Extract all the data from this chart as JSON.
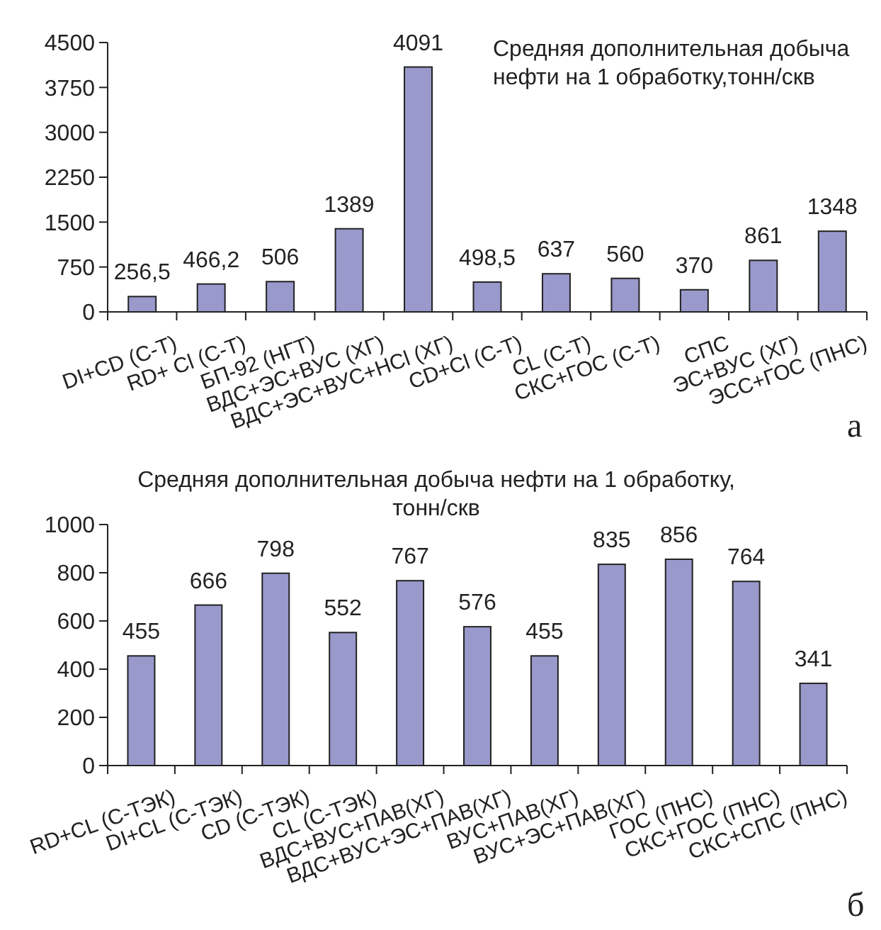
{
  "chart_data": [
    {
      "type": "bar",
      "title": "Средняя дополнительная добыча нефти на 1 обработку,тонн/скв",
      "categories": [
        "DI+CD (C-T)",
        "RD+ Cl (C-T)",
        "БП-92 (НГТ)",
        "ВДС+ЭС+ВУС (ХГ)",
        "ВДС+ЭС+ВУС+HCl (ХГ)",
        "CD+Cl (C-T)",
        "CL (C-T)",
        "СКС+ГОС (С-Т)",
        "СПС",
        "ЭС+ВУС (ХГ)",
        "ЭСС+ГОС (ПНС)"
      ],
      "values": [
        256.5,
        466.2,
        506,
        1389,
        4091,
        498.5,
        637,
        560,
        370,
        861,
        1348
      ],
      "value_labels": [
        "256,5",
        "466,2",
        "506",
        "1389",
        "4091",
        "498,5",
        "637",
        "560",
        "370",
        "861",
        "1348"
      ],
      "color": "#9999cc",
      "ylim": [
        0,
        4500
      ],
      "yticks": [
        0,
        750,
        1500,
        2250,
        3000,
        3750,
        4500
      ],
      "annotations": [
        "а"
      ]
    },
    {
      "type": "bar",
      "title": "Средняя дополнительная добыча нефти на 1 обработку, тонн/скв",
      "categories": [
        "RD+CL  (С-ТЭК)",
        "DI+CL (С-ТЭК)",
        "CD (С-ТЭК)",
        "CL (С-ТЭК)",
        "ВДС+ВУС+ПАВ(ХГ)",
        "ВДС+ВУС+ЭС+ПАВ(ХГ)",
        "ВУС+ПАВ(ХГ)",
        "ВУС+ЭС+ПАВ(ХГ)",
        "ГОС (ПНС)",
        "СКС+ГОС (ПНС)",
        "СКС+СПС (ПНС)"
      ],
      "values": [
        455,
        666,
        798,
        552,
        767,
        576,
        455,
        835,
        856,
        764,
        341
      ],
      "data_labels": true,
      "color": "#9999cc",
      "ylim": [
        0,
        1000
      ],
      "yticks": [
        0,
        200,
        400,
        600,
        800,
        1000
      ],
      "annotations": [
        "б"
      ]
    }
  ]
}
